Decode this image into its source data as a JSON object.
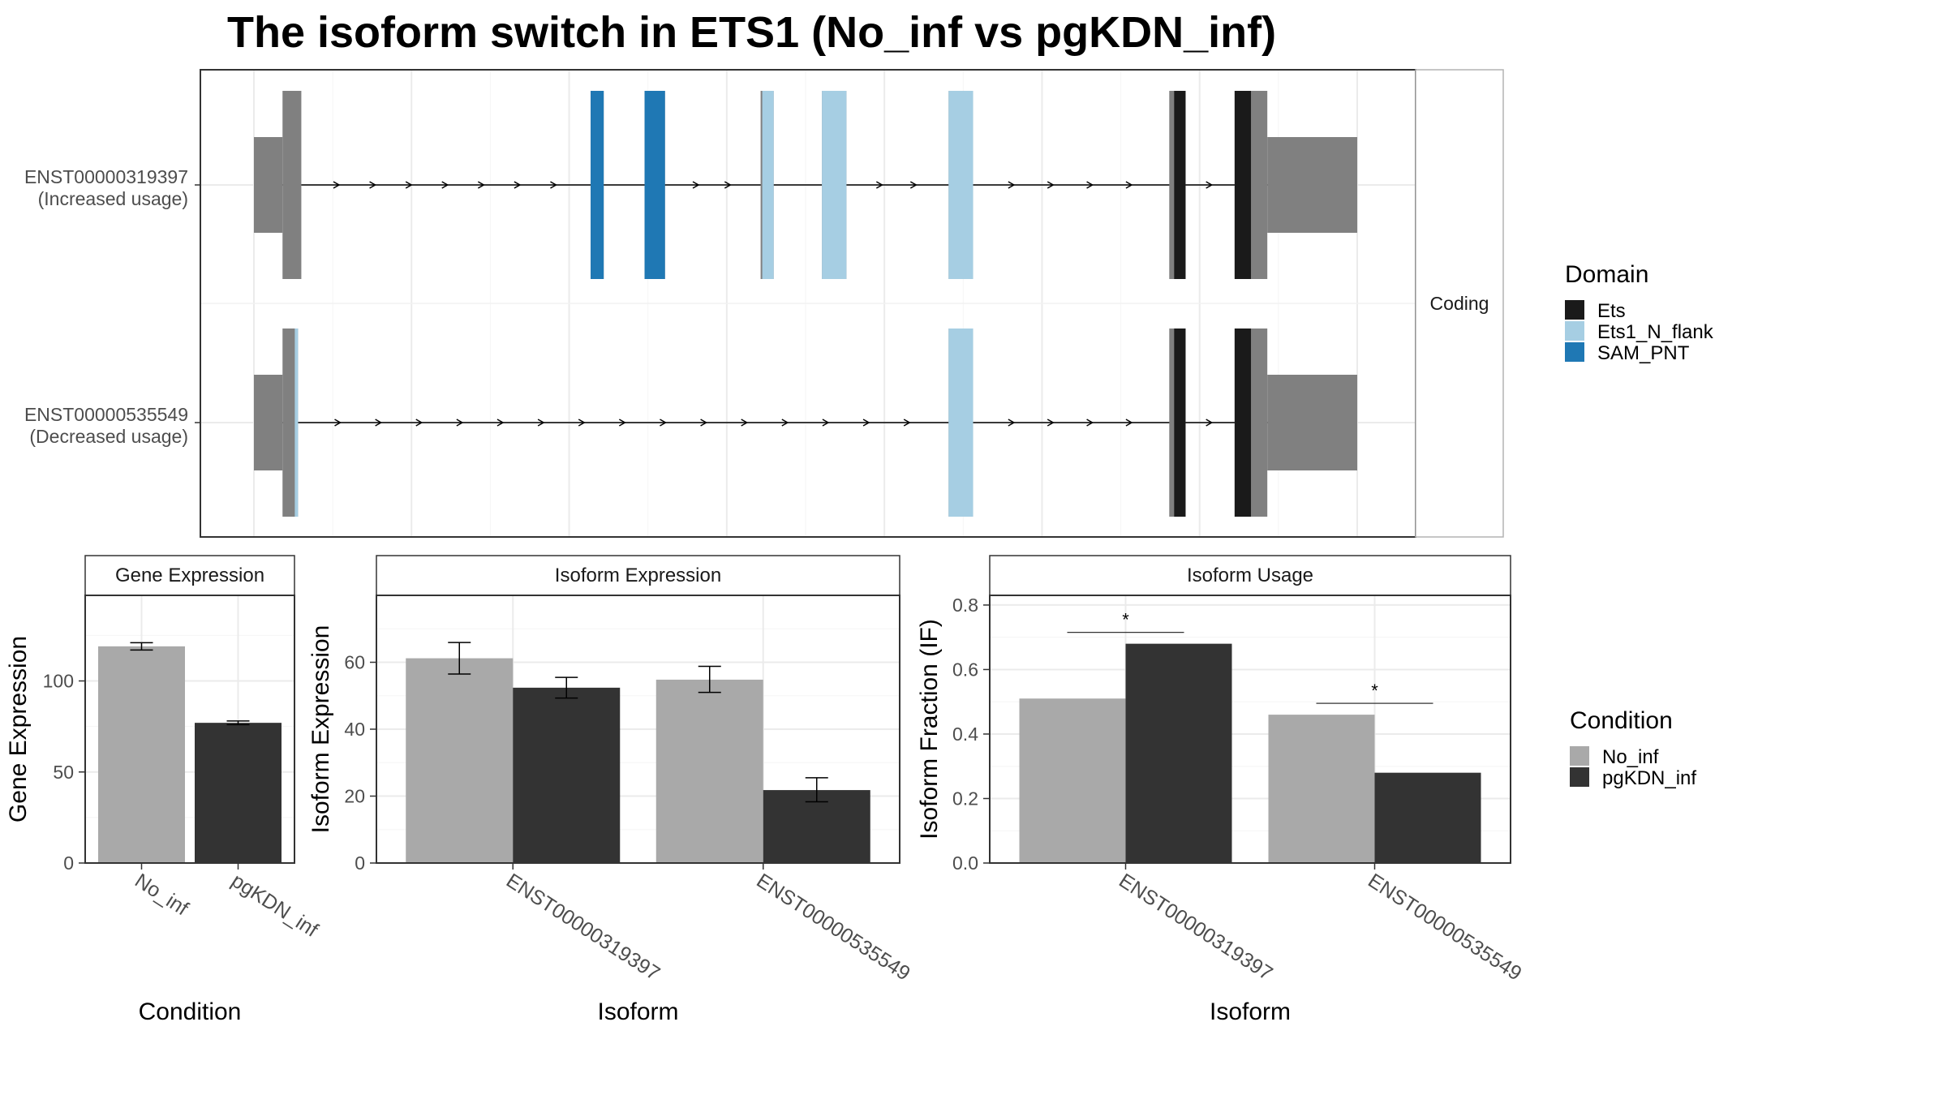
{
  "title": "The isoform switch in ETS1 (No_inf vs pgKDN_inf)",
  "colors": {
    "exon": "#808080",
    "no_inf": "#A9A9A9",
    "pgkdn_inf": "#333333",
    "ets": "#1A1A1A",
    "ets1_n_flank": "#A6CEE3",
    "sam_pnt": "#1F78B4"
  },
  "chart_data": [
    {
      "type": "gene_structure",
      "facet_label": "Coding",
      "isoforms": [
        {
          "id": "ENST00000319397",
          "label_line1": "ENST00000319397",
          "label_line2": "(Increased usage)",
          "exons": [
            {
              "start": 0,
              "end": 35,
              "kind": "utr"
            },
            {
              "start": 35,
              "end": 58,
              "kind": "cds"
            },
            {
              "start": 412,
              "end": 428,
              "kind": "cds"
            },
            {
              "start": 478,
              "end": 503,
              "kind": "cds"
            },
            {
              "start": 620,
              "end": 636,
              "kind": "cds"
            },
            {
              "start": 695,
              "end": 725,
              "kind": "cds"
            },
            {
              "start": 850,
              "end": 880,
              "kind": "cds"
            },
            {
              "start": 1120,
              "end": 1140,
              "kind": "cds"
            },
            {
              "start": 1200,
              "end": 1240,
              "kind": "cds"
            },
            {
              "start": 1240,
              "end": 1350,
              "kind": "utr"
            }
          ],
          "domains": [
            {
              "start": 412,
              "end": 428,
              "domain": "SAM_PNT"
            },
            {
              "start": 478,
              "end": 503,
              "domain": "SAM_PNT"
            },
            {
              "start": 622,
              "end": 636,
              "domain": "Ets1_N_flank"
            },
            {
              "start": 695,
              "end": 725,
              "domain": "Ets1_N_flank"
            },
            {
              "start": 850,
              "end": 880,
              "domain": "Ets1_N_flank"
            },
            {
              "start": 1126,
              "end": 1140,
              "domain": "Ets"
            },
            {
              "start": 1200,
              "end": 1220,
              "domain": "Ets"
            }
          ]
        },
        {
          "id": "ENST00000535549",
          "label_line1": "ENST00000535549",
          "label_line2": "(Decreased usage)",
          "exons": [
            {
              "start": 0,
              "end": 35,
              "kind": "utr"
            },
            {
              "start": 35,
              "end": 54,
              "kind": "cds"
            },
            {
              "start": 850,
              "end": 880,
              "kind": "cds"
            },
            {
              "start": 1120,
              "end": 1140,
              "kind": "cds"
            },
            {
              "start": 1200,
              "end": 1240,
              "kind": "cds"
            },
            {
              "start": 1240,
              "end": 1350,
              "kind": "utr"
            }
          ],
          "domains": [
            {
              "start": 50,
              "end": 54,
              "domain": "Ets1_N_flank"
            },
            {
              "start": 850,
              "end": 880,
              "domain": "Ets1_N_flank"
            },
            {
              "start": 1126,
              "end": 1140,
              "domain": "Ets"
            },
            {
              "start": 1200,
              "end": 1220,
              "domain": "Ets"
            }
          ]
        }
      ]
    },
    {
      "type": "bar",
      "facet_label": "Gene Expression",
      "xlabel": "Condition",
      "ylabel": "Gene Expression",
      "categories": [
        "No_inf",
        "pgKDN_inf"
      ],
      "values": [
        119,
        77
      ],
      "errors": [
        [
          117,
          121
        ],
        [
          76,
          78
        ]
      ],
      "ylim": [
        0,
        147
      ],
      "yticks": [
        0,
        50,
        100
      ],
      "grid": true
    },
    {
      "type": "bar",
      "facet_label": "Isoform Expression",
      "xlabel": "Isoform",
      "ylabel": "Isoform Expression",
      "categories": [
        "ENST00000319397",
        "ENST00000535549"
      ],
      "series": [
        {
          "name": "No_inf",
          "values": [
            61.2,
            54.8
          ],
          "errors": [
            [
              56.5,
              65.9
            ],
            [
              51,
              58.8
            ]
          ]
        },
        {
          "name": "pgKDN_inf",
          "values": [
            52.4,
            21.8
          ],
          "errors": [
            [
              49.3,
              55.5
            ],
            [
              18.3,
              25.5
            ]
          ]
        }
      ],
      "ylim": [
        0,
        80
      ],
      "yticks": [
        0,
        20,
        40,
        60
      ],
      "grid": true
    },
    {
      "type": "bar",
      "facet_label": "Isoform Usage",
      "xlabel": "Isoform",
      "ylabel": "Isoform Fraction (IF)",
      "categories": [
        "ENST00000319397",
        "ENST00000535549"
      ],
      "series": [
        {
          "name": "No_inf",
          "values": [
            0.51,
            0.46
          ]
        },
        {
          "name": "pgKDN_inf",
          "values": [
            0.68,
            0.28
          ]
        }
      ],
      "significance": [
        "*",
        "*"
      ],
      "ylim": [
        0,
        0.83
      ],
      "yticks": [
        "0.0",
        "0.2",
        "0.4",
        "0.6",
        "0.8"
      ],
      "grid": true
    }
  ],
  "legends": {
    "domain": {
      "title": "Domain",
      "items": [
        {
          "label": "Ets",
          "color": "#1A1A1A"
        },
        {
          "label": "Ets1_N_flank",
          "color": "#A6CEE3"
        },
        {
          "label": "SAM_PNT",
          "color": "#1F78B4"
        }
      ]
    },
    "condition": {
      "title": "Condition",
      "items": [
        {
          "label": "No_inf",
          "color": "#A9A9A9"
        },
        {
          "label": "pgKDN_inf",
          "color": "#333333"
        }
      ]
    }
  }
}
